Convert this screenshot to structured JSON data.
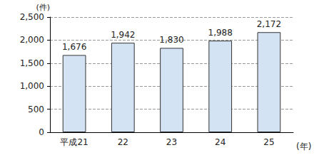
{
  "chart_data": {
    "type": "bar",
    "y_label": "(件)",
    "x_label": "(年)",
    "categories": [
      "平成21",
      "22",
      "23",
      "24",
      "25"
    ],
    "values": [
      1676,
      1942,
      1830,
      1988,
      2172
    ],
    "value_labels": [
      "1,676",
      "1,942",
      "1,830",
      "1,988",
      "2,172"
    ],
    "data_labels": true,
    "color": "#d3e3f3",
    "ylim": [
      0,
      2500
    ],
    "yticks": [
      0,
      500,
      {
        "value": 1000,
        "label": "1,000"
      },
      {
        "value": 1500,
        "label": "1,500"
      },
      {
        "value": 2000,
        "label": "2,000"
      },
      {
        "value": 2500,
        "label": "2,500"
      }
    ],
    "grid": true
  }
}
